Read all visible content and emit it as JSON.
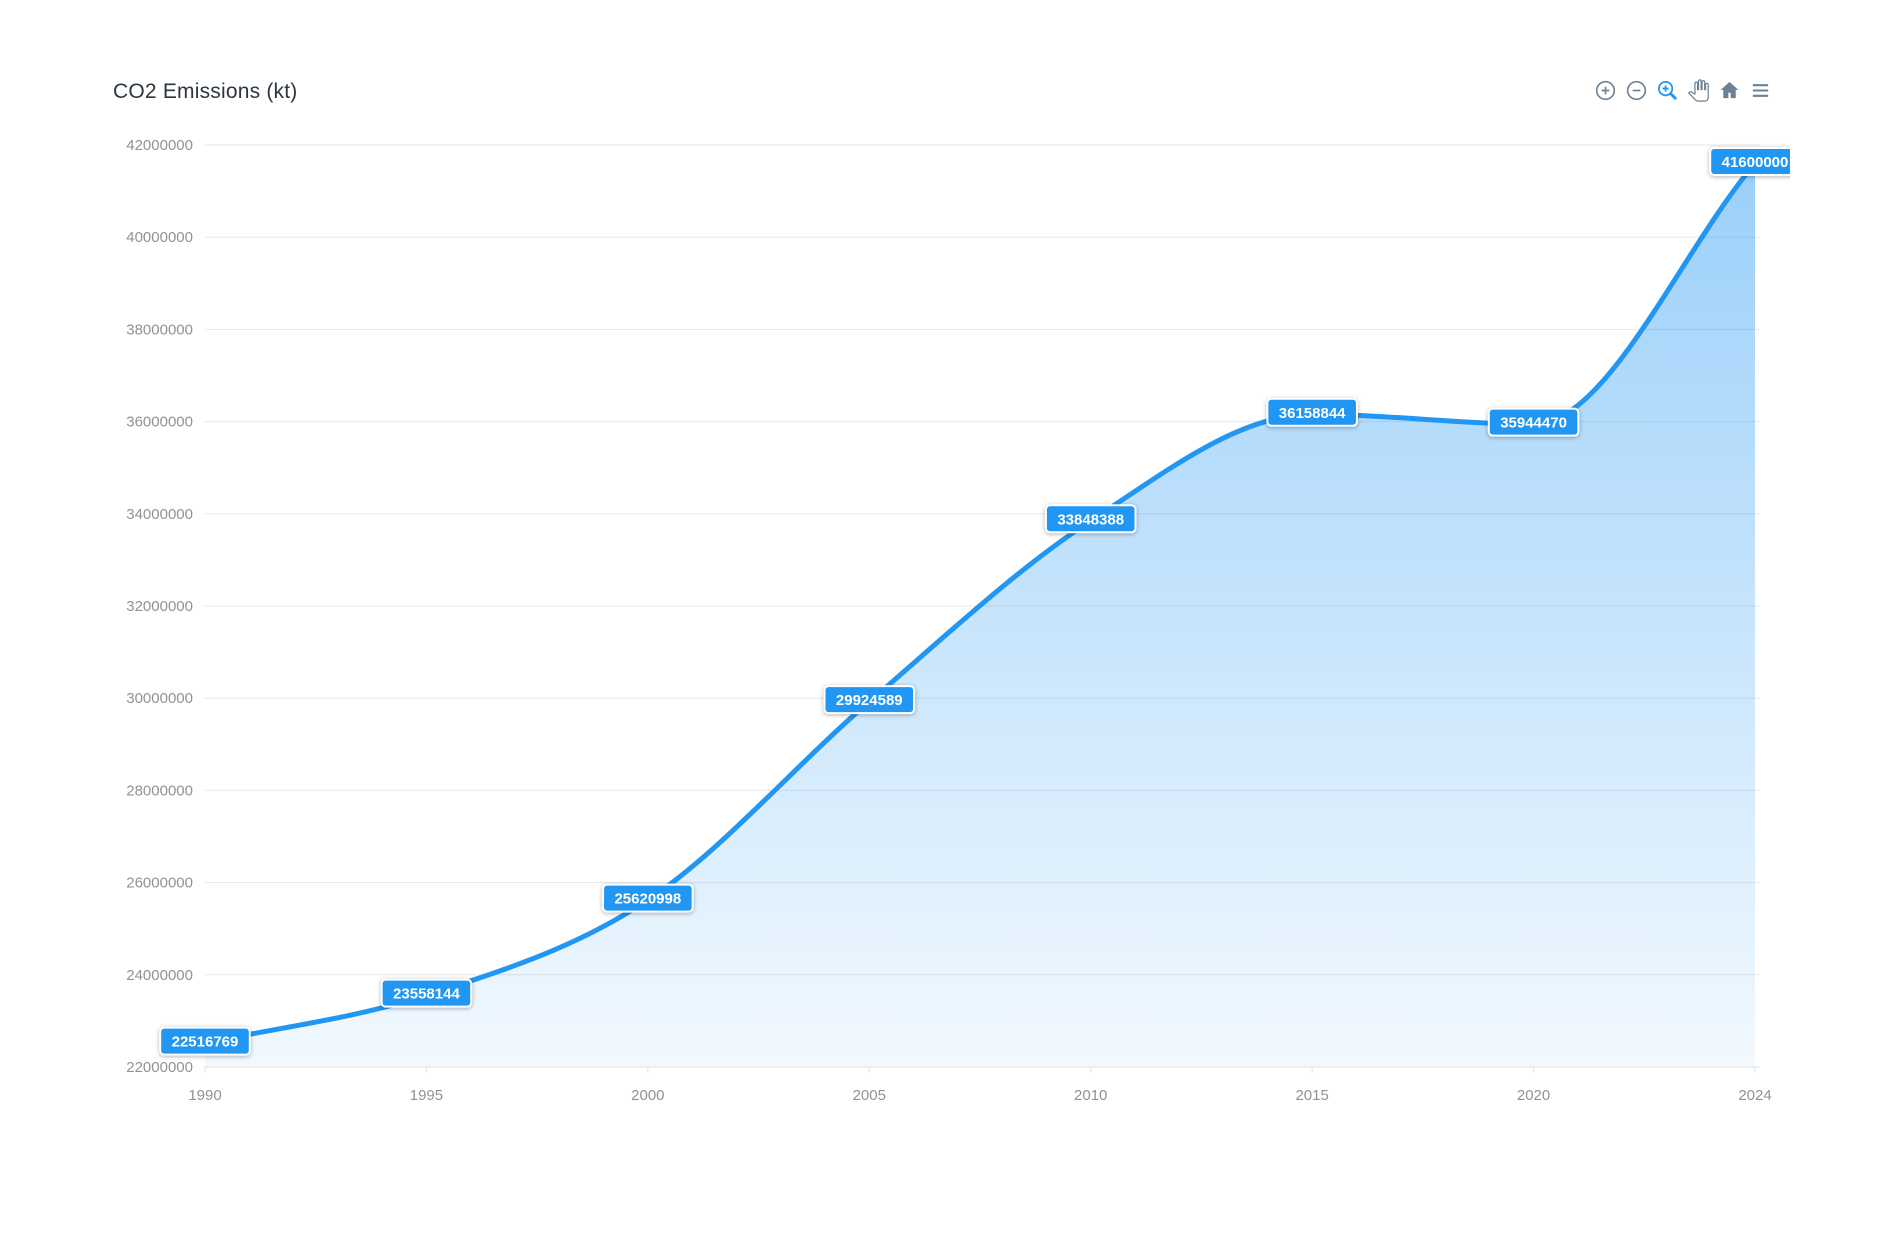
{
  "title": "CO2 Emissions (kt)",
  "toolbar": {
    "items": [
      {
        "icon": "zoom-in-icon",
        "active": false
      },
      {
        "icon": "zoom-out-icon",
        "active": false
      },
      {
        "icon": "selection-zoom-icon",
        "active": true
      },
      {
        "icon": "pan-icon",
        "active": false
      },
      {
        "icon": "home-icon",
        "active": false
      },
      {
        "icon": "menu-icon",
        "active": false
      }
    ]
  },
  "colors": {
    "accent": "#2196F3",
    "series_line": "#2196F3",
    "area_gradient_top": "rgba(33,150,243,0.45)",
    "area_gradient_bottom": "rgba(33,150,243,0.06)",
    "grid_line": "#e7e7e7",
    "tick_mark": "#e0e0e0",
    "axis_label": "#8e9398",
    "title_color": "#2b3640",
    "toolbar_icon": "#6E8192",
    "data_label_bg": "#2196F3",
    "data_label_text": "#ffffff",
    "data_label_border": "#ffffff"
  },
  "chart_data": {
    "type": "area",
    "title": "CO2 Emissions (kt)",
    "curve": "smooth",
    "grid": "horizontal",
    "legend": "none",
    "x_spacing": "category",
    "data_labels": true,
    "categories": [
      1990,
      1995,
      2000,
      2005,
      2010,
      2015,
      2020,
      2024
    ],
    "x_tick_labels": [
      "1990",
      "1995",
      "2000",
      "2005",
      "2010",
      "2015",
      "2020",
      "2024"
    ],
    "series": [
      {
        "name": "CO2 Emissions (kt)",
        "values": [
          22516769,
          23558144,
          25620998,
          29924589,
          33848388,
          36158844,
          35944470,
          41600000
        ]
      }
    ],
    "data_label_values": [
      "22516769",
      "23558144",
      "25620998",
      "29924589",
      "33848388",
      "36158844",
      "35944470",
      "41600000"
    ],
    "ylim": [
      22000000,
      42000000
    ],
    "y_tick_step": 2000000,
    "y_tick_labels": [
      "42000000",
      "40000000",
      "38000000",
      "36000000",
      "34000000",
      "32000000",
      "30000000",
      "28000000",
      "26000000",
      "24000000",
      "22000000"
    ]
  }
}
